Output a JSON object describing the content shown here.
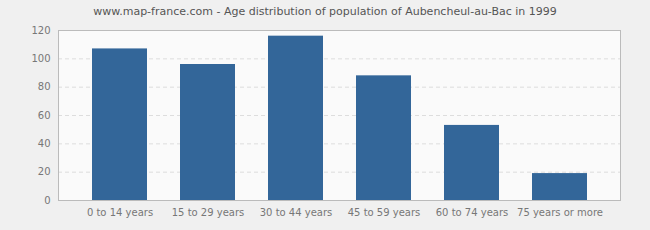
{
  "chart_data": {
    "type": "bar",
    "title": "www.map-france.com - Age distribution of population of Aubencheul-au-Bac in 1999",
    "categories": [
      "0 to 14 years",
      "15 to 29 years",
      "30 to 44 years",
      "45 to 59 years",
      "60 to 74 years",
      "75 years or more"
    ],
    "values": [
      107,
      96,
      116,
      88,
      53,
      19
    ],
    "color": "#336699",
    "ylim": [
      0,
      120
    ],
    "yticks": [
      0,
      20,
      40,
      60,
      80,
      100,
      120
    ],
    "grid": true
  }
}
